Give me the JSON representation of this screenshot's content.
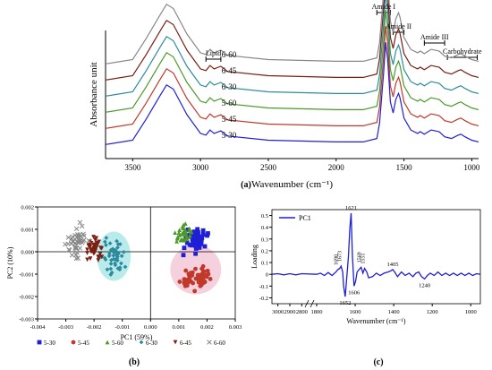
{
  "chart_data": [
    {
      "type": "line",
      "panel_label": "(a)",
      "xlabel": "Wavenumber (cm⁻¹)",
      "ylabel": "Absorbance unit",
      "x_reversed": true,
      "xlim": [
        3700,
        950
      ],
      "x_ticks": [
        3500,
        3000,
        2500,
        2000,
        1500,
        1000
      ],
      "y_ticks_shown": false,
      "offset_stacked": true,
      "series": [
        {
          "name": "6-60",
          "color": "#888888",
          "x": [
            3700,
            3500,
            3400,
            3300,
            3250,
            3200,
            3100,
            3000,
            2960,
            2930,
            2900,
            2850,
            2800,
            2500,
            2000,
            1800,
            1700,
            1680,
            1650,
            1635,
            1620,
            1600,
            1580,
            1560,
            1540,
            1530,
            1500,
            1450,
            1400,
            1380,
            1350,
            1300,
            1240,
            1200,
            1150,
            1100,
            1080,
            1050,
            1000,
            950
          ],
          "y": [
            0.05,
            0.1,
            0.35,
            0.62,
            0.75,
            0.7,
            0.4,
            0.18,
            0.16,
            0.22,
            0.18,
            0.21,
            0.15,
            0.1,
            0.08,
            0.08,
            0.12,
            0.3,
            0.9,
            1.25,
            1.05,
            0.55,
            0.42,
            0.58,
            0.65,
            0.6,
            0.36,
            0.22,
            0.18,
            0.2,
            0.17,
            0.22,
            0.2,
            0.14,
            0.12,
            0.16,
            0.17,
            0.14,
            0.1,
            0.08
          ]
        },
        {
          "name": "6-45",
          "color": "#7a1f12",
          "x": [
            3700,
            3500,
            3400,
            3300,
            3250,
            3200,
            3100,
            3000,
            2960,
            2930,
            2900,
            2850,
            2800,
            2500,
            2000,
            1800,
            1700,
            1680,
            1650,
            1635,
            1620,
            1600,
            1580,
            1560,
            1540,
            1530,
            1500,
            1450,
            1400,
            1380,
            1350,
            1300,
            1240,
            1200,
            1150,
            1100,
            1080,
            1050,
            1000,
            950
          ],
          "y": [
            0.05,
            0.1,
            0.35,
            0.62,
            0.75,
            0.7,
            0.4,
            0.18,
            0.16,
            0.22,
            0.18,
            0.21,
            0.15,
            0.1,
            0.08,
            0.08,
            0.12,
            0.3,
            0.9,
            1.25,
            1.05,
            0.55,
            0.42,
            0.58,
            0.65,
            0.6,
            0.36,
            0.22,
            0.18,
            0.2,
            0.17,
            0.22,
            0.2,
            0.14,
            0.12,
            0.16,
            0.17,
            0.14,
            0.1,
            0.08
          ]
        },
        {
          "name": "6-30",
          "color": "#2e8a9e",
          "x": [
            3700,
            3500,
            3400,
            3300,
            3250,
            3200,
            3100,
            3000,
            2960,
            2930,
            2900,
            2850,
            2800,
            2500,
            2000,
            1800,
            1700,
            1680,
            1650,
            1635,
            1620,
            1600,
            1580,
            1560,
            1540,
            1530,
            1500,
            1450,
            1400,
            1380,
            1350,
            1300,
            1240,
            1200,
            1150,
            1100,
            1080,
            1050,
            1000,
            950
          ],
          "y": [
            0.05,
            0.1,
            0.35,
            0.62,
            0.75,
            0.7,
            0.4,
            0.18,
            0.16,
            0.22,
            0.18,
            0.21,
            0.15,
            0.1,
            0.08,
            0.08,
            0.12,
            0.3,
            0.9,
            1.25,
            1.05,
            0.55,
            0.42,
            0.58,
            0.65,
            0.6,
            0.36,
            0.22,
            0.18,
            0.2,
            0.17,
            0.22,
            0.2,
            0.14,
            0.12,
            0.16,
            0.17,
            0.14,
            0.1,
            0.08
          ]
        },
        {
          "name": "5-60",
          "color": "#4c9a2a",
          "x": [
            3700,
            3500,
            3400,
            3300,
            3250,
            3200,
            3100,
            3000,
            2960,
            2930,
            2900,
            2850,
            2800,
            2500,
            2000,
            1800,
            1700,
            1680,
            1650,
            1635,
            1620,
            1600,
            1580,
            1560,
            1540,
            1530,
            1500,
            1450,
            1400,
            1380,
            1350,
            1300,
            1240,
            1200,
            1150,
            1100,
            1080,
            1050,
            1000,
            950
          ],
          "y": [
            0.05,
            0.1,
            0.35,
            0.62,
            0.75,
            0.7,
            0.4,
            0.18,
            0.16,
            0.22,
            0.18,
            0.21,
            0.15,
            0.1,
            0.08,
            0.08,
            0.12,
            0.3,
            0.9,
            1.25,
            1.05,
            0.55,
            0.42,
            0.58,
            0.65,
            0.6,
            0.36,
            0.22,
            0.18,
            0.2,
            0.17,
            0.22,
            0.2,
            0.14,
            0.12,
            0.16,
            0.17,
            0.14,
            0.1,
            0.08
          ]
        },
        {
          "name": "5-45",
          "color": "#c0392b",
          "x": [
            3700,
            3500,
            3400,
            3300,
            3250,
            3200,
            3100,
            3000,
            2960,
            2930,
            2900,
            2850,
            2800,
            2500,
            2000,
            1800,
            1700,
            1680,
            1650,
            1635,
            1620,
            1600,
            1580,
            1560,
            1540,
            1530,
            1500,
            1450,
            1400,
            1380,
            1350,
            1300,
            1240,
            1200,
            1150,
            1100,
            1080,
            1050,
            1000,
            950
          ],
          "y": [
            0.05,
            0.1,
            0.35,
            0.62,
            0.75,
            0.7,
            0.4,
            0.18,
            0.16,
            0.22,
            0.18,
            0.21,
            0.15,
            0.1,
            0.08,
            0.08,
            0.12,
            0.3,
            0.9,
            1.25,
            1.05,
            0.55,
            0.42,
            0.58,
            0.65,
            0.6,
            0.36,
            0.22,
            0.18,
            0.2,
            0.17,
            0.22,
            0.2,
            0.14,
            0.12,
            0.16,
            0.17,
            0.14,
            0.1,
            0.08
          ]
        },
        {
          "name": "5-30",
          "color": "#1f1fd6",
          "x": [
            3700,
            3500,
            3400,
            3300,
            3250,
            3200,
            3100,
            3000,
            2960,
            2930,
            2900,
            2850,
            2800,
            2500,
            2000,
            1800,
            1700,
            1680,
            1650,
            1635,
            1620,
            1600,
            1580,
            1560,
            1540,
            1530,
            1500,
            1450,
            1400,
            1380,
            1350,
            1300,
            1240,
            1200,
            1150,
            1100,
            1080,
            1050,
            1000,
            950
          ],
          "y": [
            0.05,
            0.1,
            0.35,
            0.62,
            0.75,
            0.7,
            0.4,
            0.18,
            0.16,
            0.22,
            0.18,
            0.21,
            0.15,
            0.1,
            0.08,
            0.08,
            0.12,
            0.3,
            0.9,
            1.25,
            1.05,
            0.55,
            0.42,
            0.58,
            0.65,
            0.6,
            0.36,
            0.22,
            0.18,
            0.2,
            0.17,
            0.22,
            0.2,
            0.14,
            0.12,
            0.16,
            0.17,
            0.14,
            0.1,
            0.08
          ]
        }
      ],
      "annotations": [
        {
          "label": "Lipid",
          "x_range": [
            2960,
            2850
          ]
        },
        {
          "label": "Amide I",
          "x_range": [
            1700,
            1600
          ]
        },
        {
          "label": "Amide II",
          "x_range": [
            1580,
            1500
          ]
        },
        {
          "label": "Amide III",
          "x_range": [
            1350,
            1200
          ]
        },
        {
          "label": "Carbohydrate",
          "x_range": [
            1180,
            960
          ]
        }
      ]
    },
    {
      "type": "scatter",
      "panel_label": "(b)",
      "xlabel": "PC1 (59%)",
      "ylabel": "PC2 (10%)",
      "xlim": [
        -0.004,
        0.003
      ],
      "ylim": [
        -0.003,
        0.002
      ],
      "x_ticks": [
        "-0.004",
        "-0.003",
        "-0.002",
        "-0.001",
        "0.000",
        "0.001",
        "0.002",
        "0.003"
      ],
      "y_ticks": [
        "0.002",
        "0.001",
        "0.000",
        "-0.001",
        "-0.002",
        "-0.003"
      ],
      "legend_position": "bottom",
      "series": [
        {
          "name": "5-30",
          "color": "#1f1fd6",
          "marker": "square",
          "center": [
            0.0016,
            0.0005
          ],
          "spread": [
            0.00035,
            0.0005
          ],
          "n": 45
        },
        {
          "name": "5-45",
          "color": "#c0392b",
          "marker": "circle",
          "center": [
            0.0016,
            -0.0012
          ],
          "spread": [
            0.0005,
            0.00045
          ],
          "n": 60
        },
        {
          "name": "5-60",
          "color": "#4c9a2a",
          "marker": "triangle",
          "center": [
            0.0012,
            0.0008
          ],
          "spread": [
            0.0003,
            0.0004
          ],
          "n": 35
        },
        {
          "name": "6-30",
          "color": "#2e8a9e",
          "marker": "diamond",
          "center": [
            -0.0013,
            -0.0002
          ],
          "spread": [
            0.00035,
            0.0007
          ],
          "n": 45
        },
        {
          "name": "6-45",
          "color": "#7a1f12",
          "marker": "triangle-down",
          "center": [
            -0.002,
            0.0001
          ],
          "spread": [
            0.0003,
            0.0006
          ],
          "n": 40
        },
        {
          "name": "6-60",
          "color": "#888888",
          "marker": "x",
          "center": [
            -0.0026,
            0.0004
          ],
          "spread": [
            0.00035,
            0.0007
          ],
          "n": 45
        }
      ],
      "cluster_fills": [
        {
          "color": "#a7e6e6",
          "center": [
            -0.0013,
            -0.0002
          ],
          "radius": [
            0.0006,
            0.0011
          ]
        },
        {
          "color": "#f3c4d4",
          "center": [
            0.0016,
            -0.0008
          ],
          "radius": [
            0.0009,
            0.0011
          ]
        }
      ]
    },
    {
      "type": "line",
      "panel_label": "(c)",
      "xlabel": "Wavenumber (cm⁻¹)",
      "ylabel": "Loading",
      "x_reversed": true,
      "axis_break": "3000-1800",
      "x_ticks": [
        "3000",
        "2900",
        "2800",
        "1800",
        "1600",
        "1400",
        "1200",
        "1000"
      ],
      "ylim": [
        -0.25,
        0.55
      ],
      "y_ticks": [
        "0.5",
        "0.4",
        "0.3",
        "0.2",
        "0.1",
        "0",
        "-0.1",
        "-0.2"
      ],
      "legend": {
        "position": "top-left",
        "entries": [
          "PC1"
        ]
      },
      "series": [
        {
          "name": "PC1",
          "color": "#1f1fd6",
          "x": [
            3050,
            3000,
            2950,
            2900,
            2850,
            2800,
            1800,
            1780,
            1760,
            1740,
            1720,
            1700,
            1690,
            1680,
            1673,
            1665,
            1660,
            1652,
            1645,
            1635,
            1628,
            1621,
            1614,
            1606,
            1598,
            1590,
            1580,
            1569,
            1560,
            1551,
            1540,
            1530,
            1510,
            1490,
            1470,
            1450,
            1430,
            1415,
            1405,
            1395,
            1380,
            1360,
            1340,
            1320,
            1300,
            1285,
            1270,
            1255,
            1240,
            1225,
            1210,
            1190,
            1170,
            1150,
            1130,
            1110,
            1090,
            1070,
            1050,
            1030,
            1010,
            990,
            970,
            950
          ],
          "y": [
            0,
            0.005,
            -0.005,
            0.005,
            -0.005,
            0.005,
            0,
            0.01,
            -0.01,
            0.015,
            -0.01,
            0.02,
            0.04,
            0.05,
            0.07,
            0.02,
            -0.1,
            -0.19,
            -0.05,
            0.15,
            0.38,
            0.52,
            0.15,
            -0.1,
            -0.06,
            0.02,
            0.04,
            0.06,
            0.01,
            0.05,
            0.02,
            -0.03,
            -0.02,
            0.01,
            -0.01,
            0.01,
            0.02,
            0.03,
            0.04,
            0.02,
            -0.02,
            0.02,
            -0.01,
            0.01,
            -0.02,
            0.01,
            0.02,
            -0.02,
            -0.04,
            -0.01,
            0.01,
            -0.01,
            0.02,
            -0.01,
            0.01,
            -0.01,
            0.01,
            -0.01,
            0.01,
            -0.01,
            0.01,
            -0.01,
            0.005,
            0
          ]
        }
      ],
      "peak_labels": [
        {
          "x": 1690,
          "label": "1690"
        },
        {
          "x": 1673,
          "label": "1673"
        },
        {
          "x": 1652,
          "label": "1652"
        },
        {
          "x": 1621,
          "label": "1621"
        },
        {
          "x": 1606,
          "label": "1606"
        },
        {
          "x": 1569,
          "label": "1569"
        },
        {
          "x": 1551,
          "label": "1551"
        },
        {
          "x": 1405,
          "label": "1405"
        },
        {
          "x": 1240,
          "label": "1240"
        }
      ]
    }
  ]
}
